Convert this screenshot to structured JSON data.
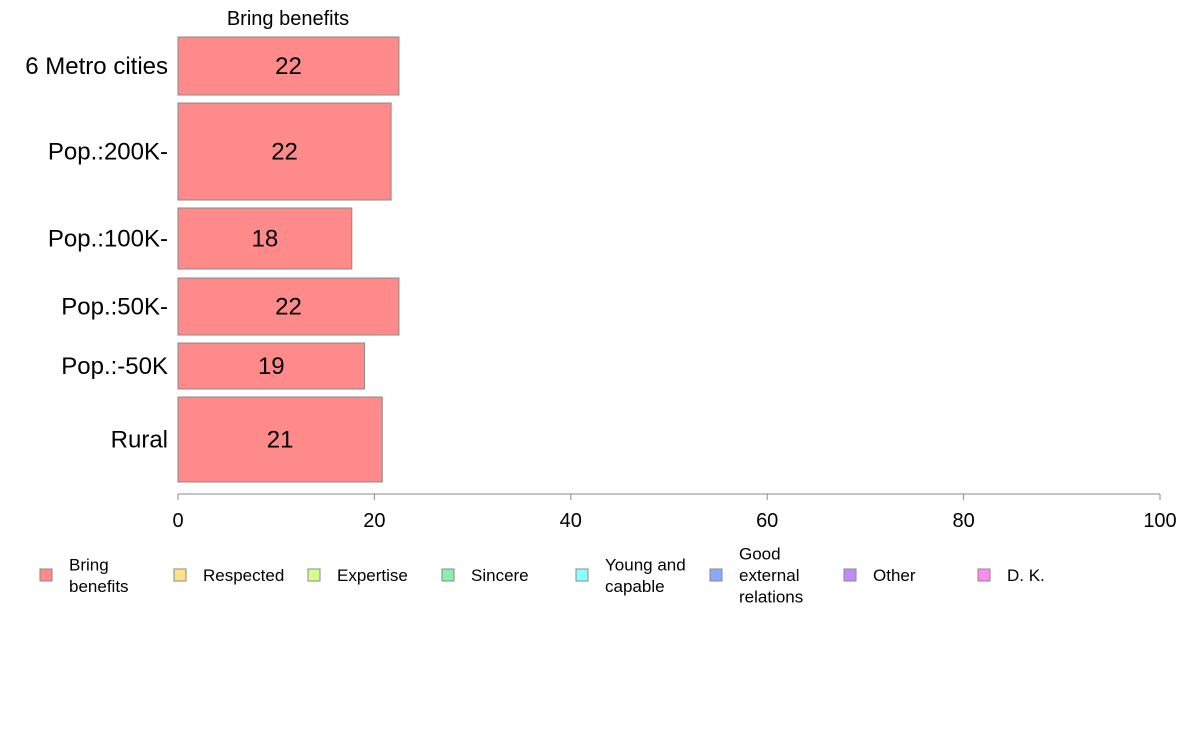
{
  "chart_data": {
    "type": "bar",
    "orientation": "horizontal",
    "stacked": true,
    "title": "Bring benefits",
    "categories": [
      "6 Metro cities",
      "Pop.:200K-",
      "Pop.:100K-",
      "Pop.:50K-",
      "Pop.:-50K",
      "Rural"
    ],
    "series": [
      {
        "name": "Bring benefits",
        "color": "#ff8a8a",
        "values": [
          22.5,
          21.7,
          17.7,
          22.5,
          19.0,
          20.8
        ],
        "labels": [
          "22",
          "22",
          "18",
          "22",
          "19",
          "21"
        ]
      }
    ],
    "xlim": [
      0,
      100
    ],
    "xticks": [
      "0",
      "20",
      "40",
      "60",
      "80",
      "100"
    ],
    "grid": false,
    "legend": {
      "placement": "bottom",
      "entries": [
        {
          "lines": [
            "Bring",
            "benefits"
          ],
          "color": "#ff8a8a"
        },
        {
          "lines": [
            "Respected"
          ],
          "color": "#ffe08a"
        },
        {
          "lines": [
            "Expertise"
          ],
          "color": "#d4ff8a"
        },
        {
          "lines": [
            "Sincere"
          ],
          "color": "#8af0a8"
        },
        {
          "lines": [
            "Young and",
            "capable"
          ],
          "color": "#8affff"
        },
        {
          "lines": [
            "Good",
            "external",
            "relations"
          ],
          "color": "#8aa8ff"
        },
        {
          "lines": [
            "Other"
          ],
          "color": "#c08aff"
        },
        {
          "lines": [
            "D. K."
          ],
          "color": "#ff8aee"
        }
      ]
    }
  }
}
